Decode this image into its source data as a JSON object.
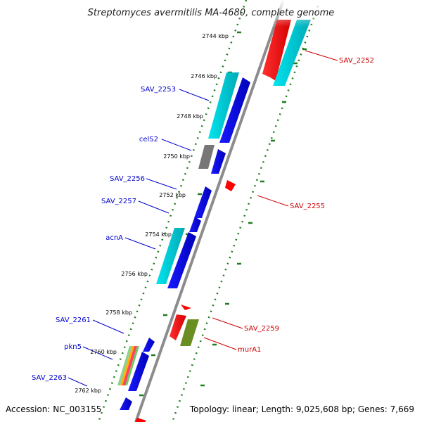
{
  "title": "Streptomyces avermitilis MA-4680, complete genome",
  "footer": {
    "accession": "Accession: NC_003155",
    "summary": "Topology: linear; Length: 9,025,608 bp; Genes: 7,669"
  },
  "ruler_ticks": [
    "2744 kbp",
    "2746 kbp",
    "2748 kbp",
    "2750 kbp",
    "2752 kbp",
    "2754 kbp",
    "2756 kbp",
    "2758 kbp",
    "2760 kbp",
    "2762 kbp"
  ],
  "genes_reverse": [
    {
      "label": "SAV_2253",
      "color": "#0000cc"
    },
    {
      "label": "celS2",
      "color": "#0000cc"
    },
    {
      "label": "SAV_2256",
      "color": "#0000cc"
    },
    {
      "label": "SAV_2257",
      "color": "#0000cc"
    },
    {
      "label": "acnA",
      "color": "#0000cc"
    },
    {
      "label": "SAV_2261",
      "color": "#0000cc"
    },
    {
      "label": "pkn5",
      "color": "#0000cc"
    },
    {
      "label": "SAV_2263",
      "color": "#0000cc"
    }
  ],
  "genes_forward": [
    {
      "label": "SAV_2252",
      "color": "#cc0000"
    },
    {
      "label": "SAV_2255",
      "color": "#cc0000"
    },
    {
      "label": "SAV_2259",
      "color": "#cc0000"
    },
    {
      "label": "murA1",
      "color": "#cc0000"
    }
  ],
  "colors": {
    "backbone": "#8c8c8c",
    "ruler_dots": "#1e7d1e",
    "reverse_cds": "#0000ee",
    "reverse_shade": "#00c8d2",
    "forward_cds": "#ff0000",
    "forward_shade": "#00c8d2",
    "grey_gene": "#777777",
    "olive_gene": "#6b8e23"
  }
}
